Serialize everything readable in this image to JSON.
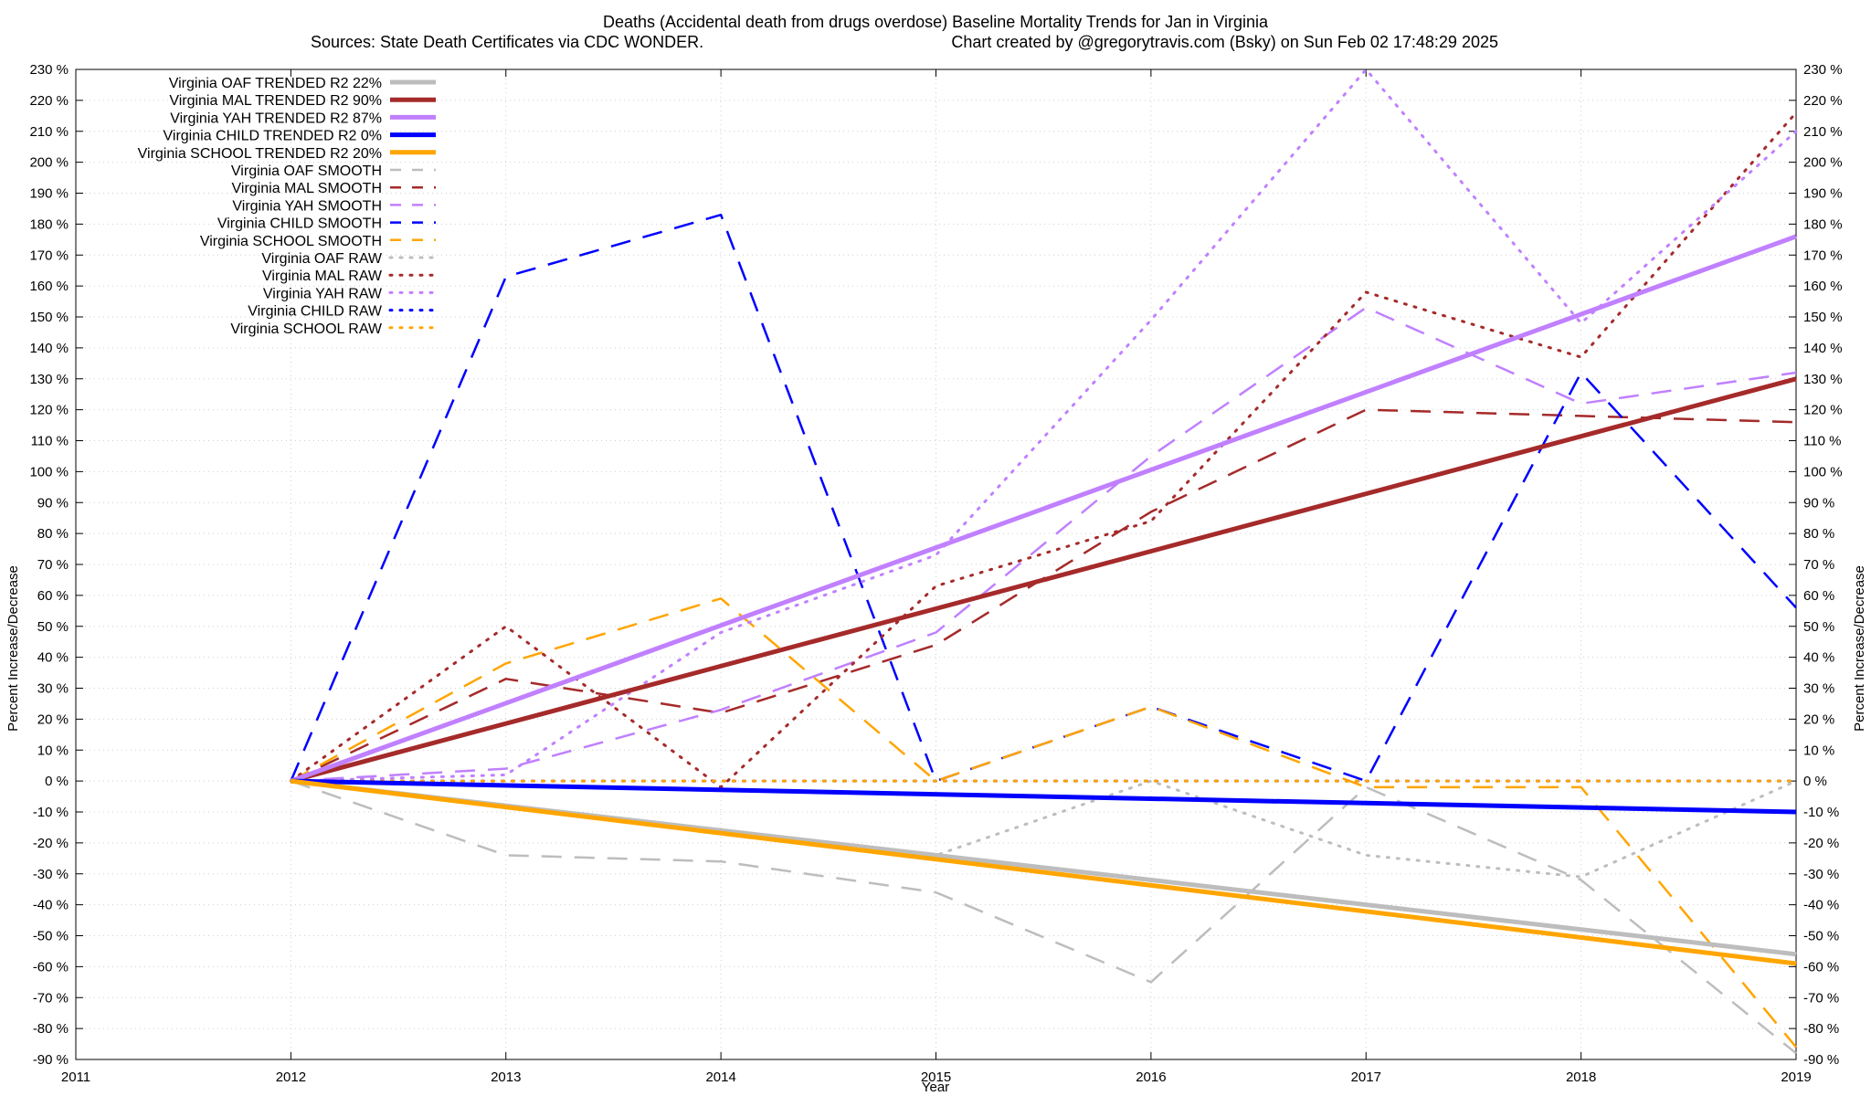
{
  "chart_data": {
    "type": "line",
    "title": "Deaths (Accidental death from drugs overdose)  Baseline Mortality Trends for Jan in Virginia",
    "subtitle_left": "Sources: State Death Certificates via CDC WONDER.",
    "subtitle_right": "Chart created by @gregorytravis.com (Bsky) on Sun Feb 02 17:48:29 2025",
    "xlabel": "Year",
    "ylabel_left": "Percent Increase/Decrease",
    "ylabel_right": "Percent Increase/Decrease",
    "xlim": [
      2011,
      2019
    ],
    "ylim": [
      -90,
      230
    ],
    "x_ticks": [
      "2011",
      "2012",
      "2013",
      "2014",
      "2015",
      "2016",
      "2017",
      "2018",
      "2019"
    ],
    "y_ticks": [
      "230 %",
      "220 %",
      "210 %",
      "200 %",
      "190 %",
      "180 %",
      "170 %",
      "160 %",
      "150 %",
      "140 %",
      "130 %",
      "120 %",
      "110 %",
      "100 %",
      "90 %",
      "80 %",
      "70 %",
      "60 %",
      "50 %",
      "40 %",
      "30 %",
      "20 %",
      "10 %",
      "0 %",
      "-10 %",
      "-20 %",
      "-30 %",
      "-40 %",
      "-50 %",
      "-60 %",
      "-70 %",
      "-80 %",
      "-90 %"
    ],
    "grid": true,
    "legend_position": "top-left",
    "series": [
      {
        "name": "Virginia OAF TRENDED R2  22%",
        "style": "solid",
        "color": "#bdbdbd",
        "x": [
          2012,
          2019
        ],
        "y": [
          0,
          -56
        ]
      },
      {
        "name": "Virginia MAL TRENDED R2  90%",
        "style": "solid",
        "color": "#a52a2a",
        "x": [
          2012,
          2019
        ],
        "y": [
          0,
          130
        ]
      },
      {
        "name": "Virginia YAH TRENDED R2  87%",
        "style": "solid",
        "color": "#c080ff",
        "x": [
          2012,
          2019
        ],
        "y": [
          0,
          176
        ]
      },
      {
        "name": "Virginia CHILD TRENDED R2   0%",
        "style": "solid",
        "color": "#0000ff",
        "x": [
          2012,
          2019
        ],
        "y": [
          0,
          -10
        ]
      },
      {
        "name": "Virginia SCHOOL TRENDED R2  20%",
        "style": "solid",
        "color": "#ffa500",
        "x": [
          2012,
          2019
        ],
        "y": [
          0,
          -59
        ]
      },
      {
        "name": "Virginia OAF SMOOTH",
        "style": "dashed",
        "color": "#bdbdbd",
        "x": [
          2012,
          2013,
          2014,
          2015,
          2016,
          2017,
          2018,
          2019
        ],
        "y": [
          0,
          -24,
          -26,
          -36,
          -65,
          -2,
          -32,
          -88
        ]
      },
      {
        "name": "Virginia MAL SMOOTH",
        "style": "dashed",
        "color": "#a52a2a",
        "x": [
          2012,
          2013,
          2014,
          2015,
          2016,
          2017,
          2018,
          2019
        ],
        "y": [
          0,
          33,
          22,
          44,
          87,
          120,
          118,
          116
        ]
      },
      {
        "name": "Virginia YAH SMOOTH",
        "style": "dashed",
        "color": "#c080ff",
        "x": [
          2012,
          2013,
          2014,
          2015,
          2016,
          2017,
          2018,
          2019
        ],
        "y": [
          0,
          4,
          23,
          48,
          105,
          153,
          122,
          132
        ]
      },
      {
        "name": "Virginia CHILD SMOOTH",
        "style": "dashed",
        "color": "#0000ff",
        "x": [
          2012,
          2013,
          2014,
          2015,
          2016,
          2017,
          2018,
          2019
        ],
        "y": [
          0,
          163,
          183,
          0,
          24,
          0,
          132,
          56
        ]
      },
      {
        "name": "Virginia SCHOOL SMOOTH",
        "style": "dashed",
        "color": "#ffa500",
        "x": [
          2012,
          2013,
          2014,
          2015,
          2016,
          2017,
          2018,
          2019
        ],
        "y": [
          0,
          38,
          59,
          0,
          24,
          -2,
          -2,
          -86
        ]
      },
      {
        "name": "Virginia OAF RAW",
        "style": "dotted",
        "color": "#bdbdbd",
        "x": [
          2012,
          2013,
          2014,
          2015,
          2016,
          2017,
          2018,
          2019
        ],
        "y": [
          0,
          -8,
          -16,
          -24,
          0,
          -24,
          -31,
          0
        ]
      },
      {
        "name": "Virginia MAL RAW",
        "style": "dotted",
        "color": "#a52a2a",
        "x": [
          2012,
          2013,
          2014,
          2015,
          2016,
          2017,
          2018,
          2019
        ],
        "y": [
          0,
          50,
          -2,
          63,
          84,
          158,
          137,
          216
        ]
      },
      {
        "name": "Virginia YAH RAW",
        "style": "dotted",
        "color": "#c080ff",
        "x": [
          2012,
          2013,
          2014,
          2015,
          2016,
          2017,
          2018,
          2019
        ],
        "y": [
          0,
          2,
          48,
          73,
          149,
          230,
          148,
          210
        ]
      },
      {
        "name": "Virginia CHILD RAW",
        "style": "dotted",
        "color": "#0000ff",
        "x": [
          2012,
          2013,
          2014,
          2015,
          2016,
          2017,
          2018,
          2019
        ],
        "y": [
          0,
          0,
          0,
          0,
          0,
          0,
          0,
          0
        ]
      },
      {
        "name": "Virginia SCHOOL RAW",
        "style": "dotted",
        "color": "#ffa500",
        "x": [
          2012,
          2013,
          2014,
          2015,
          2016,
          2017,
          2018,
          2019
        ],
        "y": [
          0,
          0,
          0,
          0,
          0,
          0,
          0,
          0
        ]
      }
    ]
  }
}
